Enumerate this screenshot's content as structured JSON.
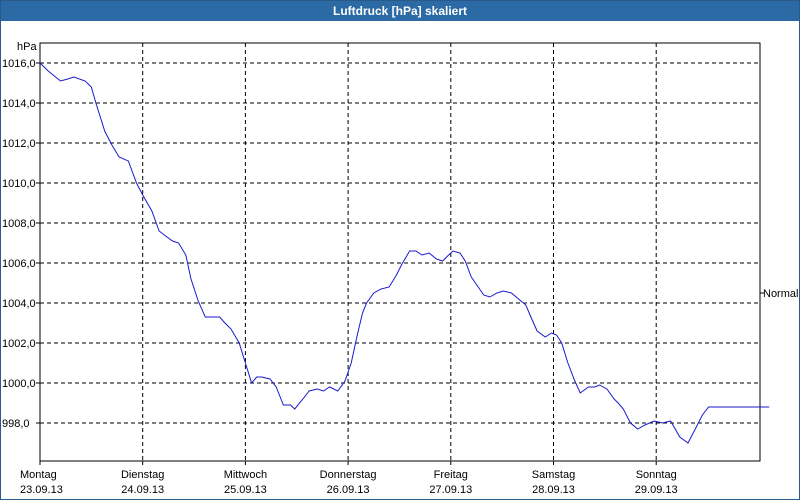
{
  "window": {
    "title": "Luftdruck [hPa] skaliert"
  },
  "chart_data": {
    "type": "line",
    "title": "Luftdruck [hPa] skaliert",
    "ylabel": "hPa",
    "ylim": [
      996.0,
      1017.0
    ],
    "yticks": [
      "998,0",
      "1000,0",
      "1002,0",
      "1004,0",
      "1006,0",
      "1008,0",
      "1010,0",
      "1012,0",
      "1014,0",
      "1016,0"
    ],
    "ytick_values": [
      998,
      1000,
      1002,
      1004,
      1006,
      1008,
      1010,
      1012,
      1014,
      1016
    ],
    "xlim": [
      0,
      7.1
    ],
    "x_ticks": [
      {
        "day": "Montag",
        "date": "23.09.13",
        "x": 0
      },
      {
        "day": "Dienstag",
        "date": "24.09.13",
        "x": 1
      },
      {
        "day": "Mittwoch",
        "date": "25.09.13",
        "x": 2
      },
      {
        "day": "Donnerstag",
        "date": "26.09.13",
        "x": 3
      },
      {
        "day": "Freitag",
        "date": "27.09.13",
        "x": 4
      },
      {
        "day": "Samstag",
        "date": "28.09.13",
        "x": 5
      },
      {
        "day": "Sonntag",
        "date": "29.09.13",
        "x": 6
      }
    ],
    "right_label": {
      "text": "Normal",
      "value": 1004.5
    },
    "grid": true,
    "series": [
      {
        "color": "#1a1acc",
        "x": [
          0.0,
          0.08,
          0.2,
          0.27,
          0.33,
          0.44,
          0.5,
          0.55,
          0.63,
          0.7,
          0.77,
          0.86,
          0.94,
          1.0,
          1.09,
          1.16,
          1.21,
          1.29,
          1.35,
          1.42,
          1.47,
          1.54,
          1.61,
          1.68,
          1.75,
          1.8,
          1.86,
          1.94,
          2.0,
          2.06,
          2.11,
          2.16,
          2.24,
          2.3,
          2.37,
          2.44,
          2.48,
          2.56,
          2.62,
          2.7,
          2.76,
          2.82,
          2.9,
          2.97,
          3.03,
          3.09,
          3.14,
          3.18,
          3.25,
          3.32,
          3.4,
          3.47,
          3.53,
          3.6,
          3.66,
          3.72,
          3.79,
          3.86,
          3.92,
          3.98,
          4.02,
          4.09,
          4.14,
          4.2,
          4.28,
          4.32,
          4.38,
          4.45,
          4.51,
          4.59,
          4.66,
          4.73,
          4.78,
          4.84,
          4.92,
          4.98,
          5.03,
          5.08,
          5.14,
          5.2,
          5.26,
          5.34,
          5.4,
          5.45,
          5.52,
          5.59,
          5.63,
          5.68,
          5.75,
          5.82,
          5.89,
          5.98,
          6.06,
          6.14,
          6.23,
          6.31,
          6.39,
          6.45,
          6.51,
          6.56,
          6.61,
          6.69,
          6.76,
          6.84,
          6.91,
          6.99,
          7.05,
          7.1
        ],
        "values": [
          1016.0,
          1015.6,
          1015.1,
          1015.2,
          1015.3,
          1015.1,
          1014.8,
          1013.9,
          1012.6,
          1011.9,
          1011.3,
          1011.1,
          1010.0,
          1009.4,
          1008.6,
          1007.6,
          1007.4,
          1007.1,
          1007.0,
          1006.4,
          1005.2,
          1004.1,
          1003.3,
          1003.3,
          1003.3,
          1003.0,
          1002.7,
          1002.0,
          1001.0,
          1000.0,
          1000.3,
          1000.3,
          1000.2,
          999.8,
          998.9,
          998.9,
          998.7,
          999.2,
          999.6,
          999.7,
          999.6,
          999.8,
          999.6,
          1000.1,
          1001.0,
          1002.4,
          1003.5,
          1004.0,
          1004.5,
          1004.7,
          1004.8,
          1005.4,
          1006.0,
          1006.6,
          1006.6,
          1006.4,
          1006.5,
          1006.2,
          1006.1,
          1006.4,
          1006.6,
          1006.5,
          1006.1,
          1005.3,
          1004.7,
          1004.4,
          1004.3,
          1004.5,
          1004.6,
          1004.5,
          1004.2,
          1003.9,
          1003.3,
          1002.6,
          1002.3,
          1002.5,
          1002.4,
          1002.0,
          1001.0,
          1000.2,
          999.5,
          999.8,
          999.8,
          999.9,
          999.7,
          999.2,
          999.0,
          998.7,
          998.0,
          997.7,
          997.9,
          998.1,
          998.0,
          998.1,
          997.3,
          997.0,
          997.8,
          998.4,
          998.8,
          998.8,
          998.8,
          998.8,
          998.8,
          998.8,
          998.8,
          998.8,
          998.8,
          998.8
        ]
      }
    ]
  }
}
